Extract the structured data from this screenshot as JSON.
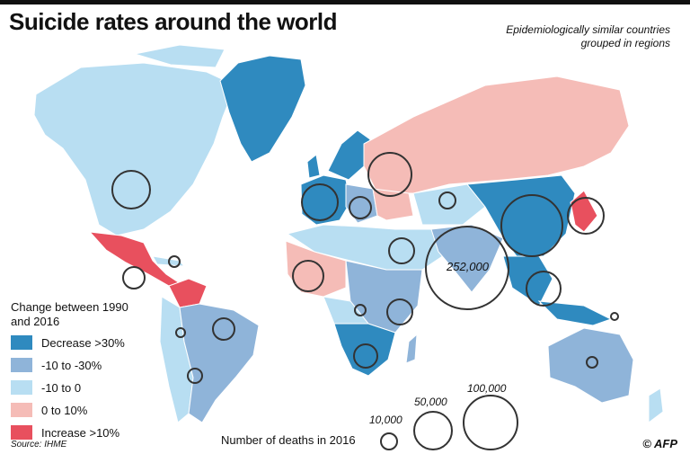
{
  "title": "Suicide rates around the world",
  "subtitle": "Epidemiologically similar countries grouped in regions",
  "legend": {
    "title": "Change between 1990 and 2016",
    "items": [
      {
        "label": "Decrease >30%",
        "color": "#2f8abf"
      },
      {
        "label": "-10 to -30%",
        "color": "#8fb4d9"
      },
      {
        "label": "-10 to 0",
        "color": "#b8def2"
      },
      {
        "label": "0 to 10%",
        "color": "#f5bcb7"
      },
      {
        "label": "Increase >10%",
        "color": "#e8505e"
      }
    ]
  },
  "size_legend": {
    "title": "Number of deaths in 2016",
    "labels": [
      "10,000",
      "50,000",
      "100,000"
    ],
    "values": [
      10000,
      50000,
      100000
    ]
  },
  "bubble_label": "252,000",
  "source": "Source: IHME",
  "credit": "© AFP"
}
